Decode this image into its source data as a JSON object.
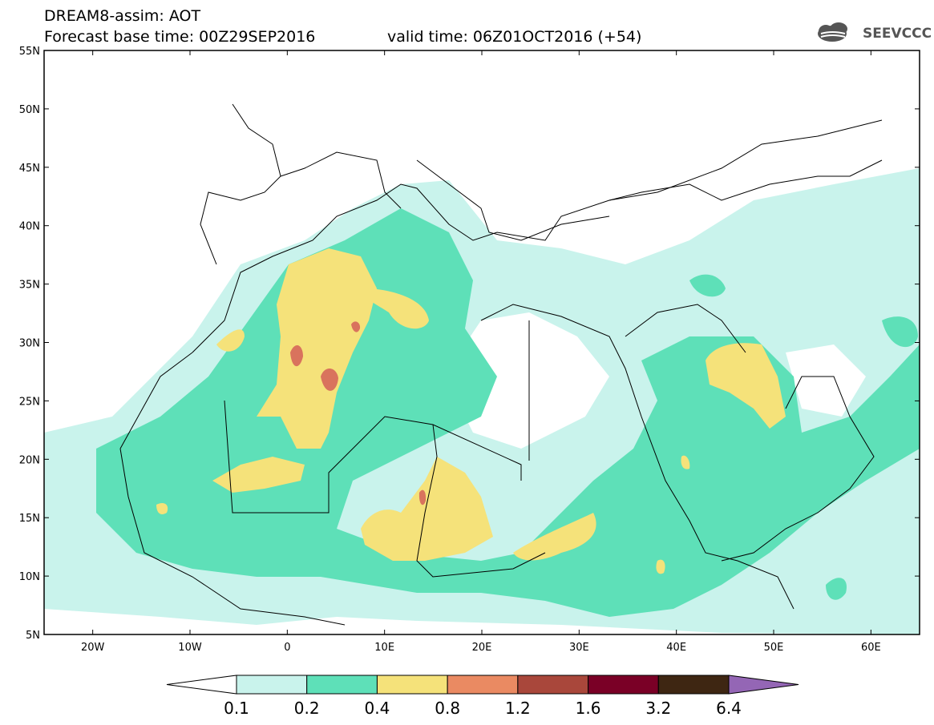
{
  "header": {
    "title": "DREAM8-assim: AOT",
    "base_time": "Forecast base time: 00Z29SEP2016",
    "valid_time": "valid time: 06Z01OCT2016 (+54)"
  },
  "logo": {
    "text": "SEEVCCC",
    "icon": "cloud-logo-icon"
  },
  "axes": {
    "lat_labels": [
      "55N",
      "50N",
      "45N",
      "40N",
      "35N",
      "30N",
      "25N",
      "20N",
      "15N",
      "10N",
      "5N"
    ],
    "lon_labels": [
      "20W",
      "10W",
      "0",
      "10E",
      "20E",
      "30E",
      "40E",
      "50E",
      "60E"
    ],
    "lat_range": [
      5,
      55
    ],
    "lon_range": [
      -25,
      65
    ]
  },
  "colorbar": {
    "labels": [
      "0.1",
      "0.2",
      "0.4",
      "0.8",
      "1.2",
      "1.6",
      "3.2",
      "6.4"
    ],
    "colors": [
      "#ffffff",
      "#c9f3ec",
      "#5ee0b8",
      "#f5e27a",
      "#ea8a62",
      "#a9473b",
      "#7a0026",
      "#3e2612",
      "#9466b5"
    ]
  },
  "field_colors": {
    "light_cyan": "#c9f3ec",
    "green": "#5ee0b8",
    "yellow": "#f5e27a",
    "orange": "#d9735d"
  }
}
